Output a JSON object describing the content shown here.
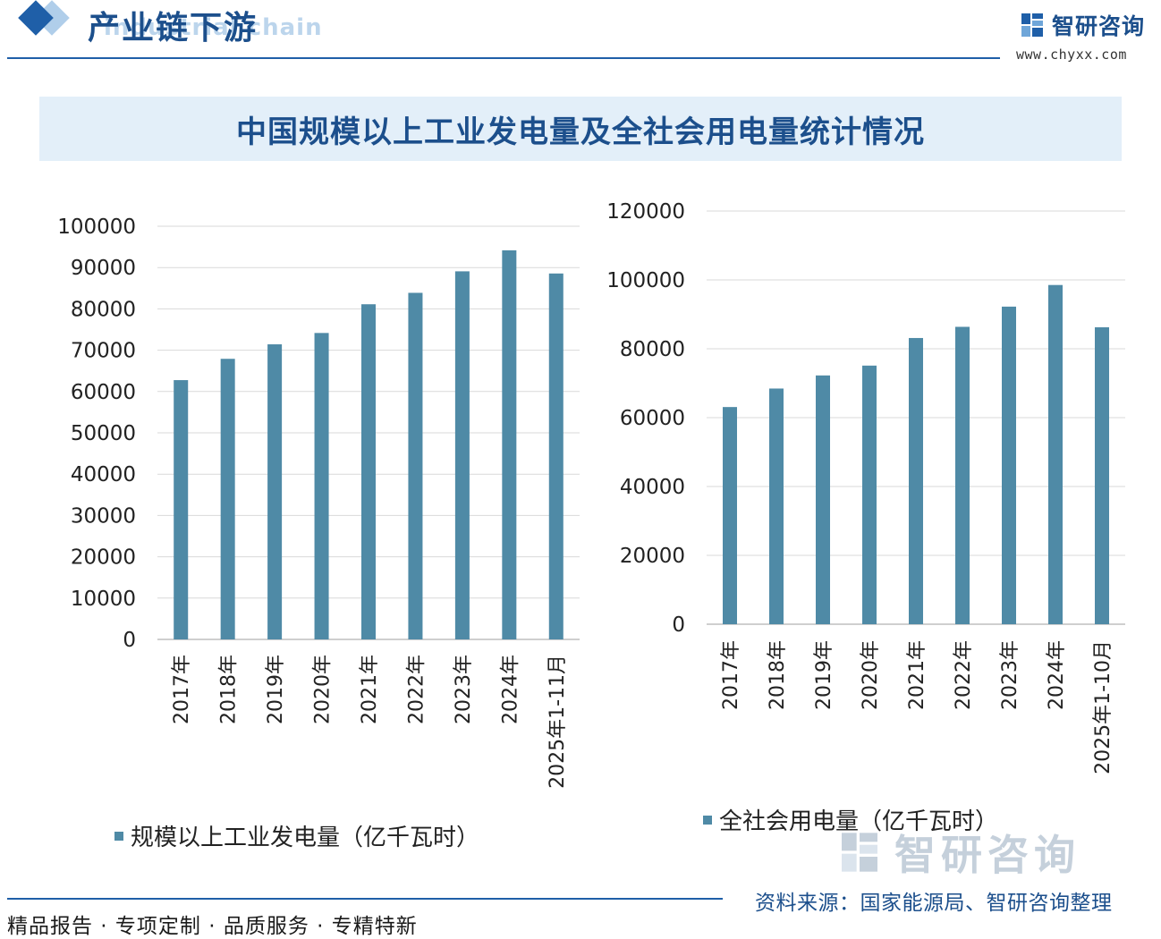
{
  "header": {
    "section_title": "产业链下游",
    "section_sub": "industrial chain",
    "brand_name": "智研咨询",
    "brand_url": "www.chyxx.com"
  },
  "title": "中国规模以上工业发电量及全社会用电量统计情况",
  "colors": {
    "bar": "#4f8aa6",
    "accent": "#1f5fa8",
    "grid": "#d9d9d9"
  },
  "chart_data": [
    {
      "type": "bar",
      "title": "",
      "categories": [
        "2017年",
        "2018年",
        "2019年",
        "2020年",
        "2021年",
        "2022年",
        "2023年",
        "2024年",
        "2025年1-11月"
      ],
      "series": [
        {
          "name": "规模以上工业发电量（亿千瓦时）",
          "values": [
            62758,
            67914,
            71422,
            74170,
            81122,
            83886,
            89091,
            94181,
            88567
          ]
        }
      ],
      "ylim": [
        0,
        100000
      ],
      "yticks": [
        0,
        10000,
        20000,
        30000,
        40000,
        50000,
        60000,
        70000,
        80000,
        90000,
        100000
      ],
      "xlabel": "",
      "ylabel": "",
      "legend": "bottom"
    },
    {
      "type": "bar",
      "title": "",
      "categories": [
        "2017年",
        "2018年",
        "2019年",
        "2020年",
        "2021年",
        "2022年",
        "2023年",
        "2024年",
        "2025年1-10月"
      ],
      "series": [
        {
          "name": "全社会用电量（亿千瓦时）",
          "values": [
            63077,
            68449,
            72255,
            75110,
            83128,
            86372,
            92241,
            98521,
            86246
          ]
        }
      ],
      "ylim": [
        0,
        120000
      ],
      "yticks": [
        0,
        20000,
        40000,
        60000,
        80000,
        100000,
        120000
      ],
      "xlabel": "",
      "ylabel": "",
      "legend": "bottom"
    }
  ],
  "footer": {
    "left": "精品报告 · 专项定制 · 品质服务 · 专精特新",
    "source": "资料来源：国家能源局、智研咨询整理",
    "watermark": "智研咨询"
  }
}
